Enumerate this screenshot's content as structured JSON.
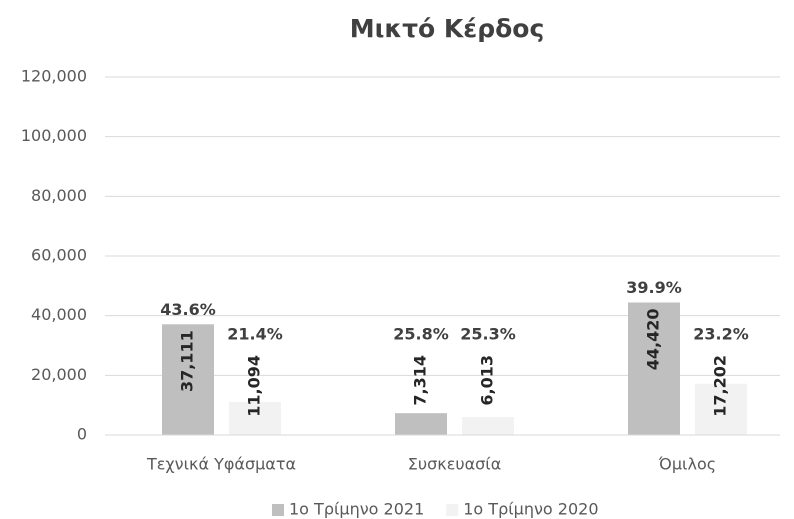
{
  "chart_data": {
    "type": "bar",
    "title": "Μικτό Κέρδος",
    "categories": [
      "Τεχνικά Υφάσματα",
      "Συσκευασία",
      "Όμιλος"
    ],
    "series": [
      {
        "name": "1ο Τρίμηνο 2021",
        "color": "#bfbfbf",
        "values": [
          37111,
          7314,
          44420
        ],
        "value_labels": [
          "37,111",
          "7,314",
          "44,420"
        ],
        "percent_labels": [
          "43.6%",
          "25.8%",
          "39.9%"
        ]
      },
      {
        "name": "1ο Τρίμηνο 2020",
        "color": "#f2f2f2",
        "values": [
          11094,
          6013,
          17202
        ],
        "value_labels": [
          "11,094",
          "6,013",
          "17,202"
        ],
        "percent_labels": [
          "21.4%",
          "25.3%",
          "23.2%"
        ]
      }
    ],
    "ylim": [
      0,
      120000
    ],
    "yticks": [
      0,
      {
        "value": 20000,
        "label": "20,000"
      },
      {
        "value": 40000,
        "label": "40,000"
      },
      {
        "value": 60000,
        "label": "60,000"
      },
      {
        "value": 80000,
        "label": "80,000"
      },
      {
        "value": 100000,
        "label": "100,000"
      },
      {
        "value": 120000,
        "label": "120,000"
      }
    ],
    "grid": true,
    "legend": "bottom"
  }
}
